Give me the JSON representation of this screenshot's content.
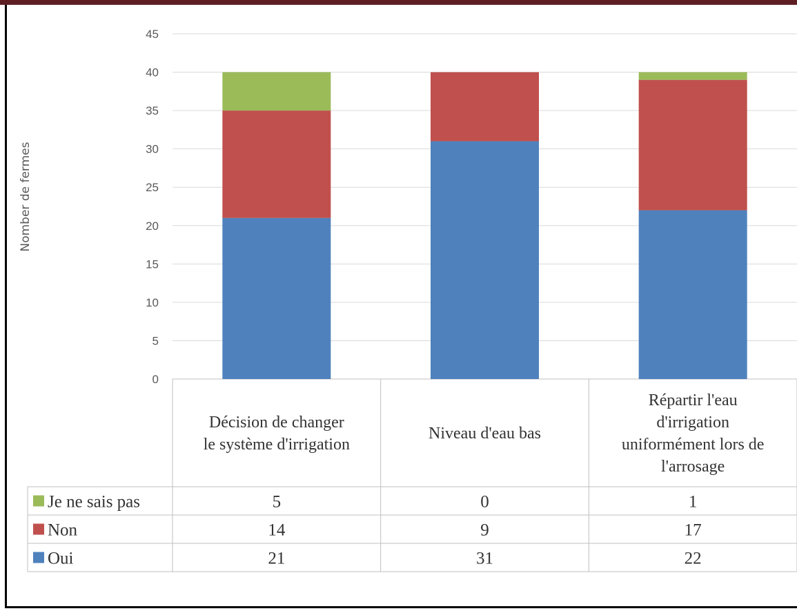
{
  "chart_data": {
    "type": "bar",
    "stacked": true,
    "ylabel": "Nomber de fermes",
    "ylim": [
      0,
      45
    ],
    "yticks": [
      0,
      5,
      10,
      15,
      20,
      25,
      30,
      35,
      40,
      45
    ],
    "grid": true,
    "categories": [
      [
        "Décision de changer",
        "le système d'irrigation"
      ],
      [
        "Niveau d'eau bas"
      ],
      [
        "Répartir l'eau",
        "d'irrigation",
        "uniformément lors de",
        "l'arrosage"
      ]
    ],
    "series": [
      {
        "name": "Oui",
        "color": "#4f81bd",
        "values": [
          21,
          31,
          22
        ]
      },
      {
        "name": "Non",
        "color": "#c0504d",
        "values": [
          14,
          9,
          17
        ]
      },
      {
        "name": "Je ne sais pas",
        "color": "#9bbb59",
        "values": [
          5,
          0,
          1
        ]
      }
    ],
    "table_row_order": [
      "Je ne sais pas",
      "Non",
      "Oui"
    ]
  }
}
